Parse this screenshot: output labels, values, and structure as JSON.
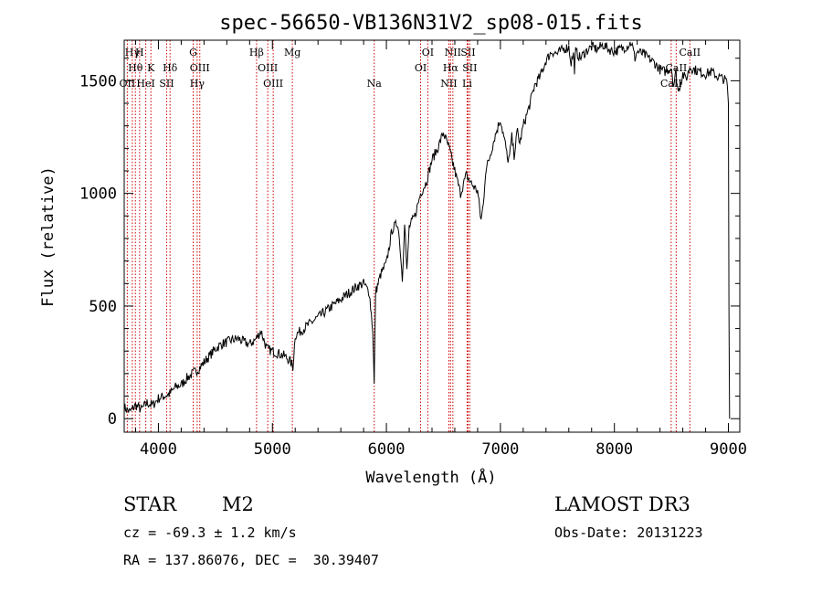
{
  "chart_data": {
    "type": "line",
    "title": "spec-56650-VB136N31V2_sp08-015.fits",
    "xlabel": "Wavelength (Å)",
    "ylabel": "Flux (relative)",
    "xlim": [
      3700,
      9100
    ],
    "ylim": [
      -60,
      1680
    ],
    "xticks": [
      4000,
      5000,
      6000,
      7000,
      8000,
      9000
    ],
    "yticks": [
      0,
      500,
      1000,
      1500
    ],
    "series": [
      {
        "name": "flux",
        "x": [
          3700,
          3750,
          3800,
          3850,
          3900,
          3950,
          4000,
          4050,
          4100,
          4150,
          4200,
          4250,
          4300,
          4350,
          4400,
          4450,
          4500,
          4550,
          4600,
          4650,
          4700,
          4750,
          4800,
          4850,
          4900,
          4950,
          5000,
          5050,
          5100,
          5150,
          5180,
          5200,
          5250,
          5300,
          5350,
          5400,
          5450,
          5500,
          5550,
          5600,
          5650,
          5700,
          5750,
          5800,
          5850,
          5880,
          5893,
          5905,
          5950,
          6000,
          6050,
          6100,
          6120,
          6140,
          6160,
          6180,
          6200,
          6250,
          6300,
          6350,
          6400,
          6450,
          6500,
          6550,
          6600,
          6650,
          6700,
          6750,
          6800,
          6830,
          6850,
          6870,
          6900,
          6950,
          7000,
          7030,
          7050,
          7060,
          7080,
          7100,
          7120,
          7150,
          7170,
          7200,
          7250,
          7300,
          7350,
          7400,
          7450,
          7500,
          7550,
          7600,
          7620,
          7640,
          7650,
          7660,
          7700,
          7750,
          7800,
          7850,
          7900,
          7950,
          8000,
          8050,
          8100,
          8150,
          8180,
          8200,
          8250,
          8300,
          8350,
          8400,
          8450,
          8500,
          8520,
          8540,
          8560,
          8600,
          8620,
          8640,
          8660,
          8700,
          8750,
          8800,
          8850,
          8900,
          8950,
          8980,
          8990,
          9000,
          9005,
          9010
        ],
        "values": [
          50,
          30,
          60,
          40,
          70,
          60,
          90,
          100,
          110,
          140,
          150,
          180,
          200,
          220,
          250,
          280,
          310,
          330,
          340,
          350,
          355,
          340,
          330,
          350,
          390,
          310,
          300,
          290,
          280,
          260,
          230,
          370,
          390,
          410,
          430,
          450,
          470,
          490,
          510,
          530,
          550,
          570,
          590,
          600,
          560,
          400,
          150,
          560,
          640,
          690,
          840,
          870,
          760,
          620,
          880,
          650,
          850,
          900,
          1000,
          1050,
          1150,
          1200,
          1270,
          1200,
          1100,
          1000,
          1080,
          1040,
          1010,
          880,
          950,
          1100,
          1150,
          1250,
          1330,
          1250,
          1200,
          1150,
          1160,
          1250,
          1170,
          1280,
          1220,
          1300,
          1380,
          1480,
          1520,
          1590,
          1630,
          1620,
          1640,
          1650,
          1580,
          1620,
          1550,
          1630,
          1600,
          1630,
          1650,
          1640,
          1660,
          1640,
          1630,
          1640,
          1650,
          1670,
          1600,
          1630,
          1620,
          1600,
          1580,
          1550,
          1540,
          1560,
          1480,
          1540,
          1450,
          1530,
          1510,
          1520,
          1560,
          1550,
          1540,
          1530,
          1540,
          1520,
          1510,
          1500,
          1480,
          1400,
          500,
          0
        ]
      }
    ],
    "line_markers": [
      {
        "label": "Hγ",
        "x": 3771,
        "row": 0
      },
      {
        "label": "H",
        "x": 3835,
        "row": 0
      },
      {
        "label": "G",
        "x": 4305,
        "row": 0
      },
      {
        "label": "Hβ",
        "x": 4861,
        "row": 0
      },
      {
        "label": "Mg",
        "x": 5175,
        "row": 0
      },
      {
        "label": "OI",
        "x": 6363,
        "row": 0
      },
      {
        "label": "NII",
        "x": 6583,
        "row": 0
      },
      {
        "label": "SII",
        "x": 6716,
        "row": 0
      },
      {
        "label": "CaII",
        "x": 8662,
        "row": 0
      },
      {
        "label": "Hθ",
        "x": 3798,
        "row": 1
      },
      {
        "label": "K",
        "x": 3934,
        "row": 1
      },
      {
        "label": "Hδ",
        "x": 4102,
        "row": 1
      },
      {
        "label": "OIII",
        "x": 4363,
        "row": 1
      },
      {
        "label": "OIII",
        "x": 4959,
        "row": 1
      },
      {
        "label": "OI",
        "x": 6300,
        "row": 1
      },
      {
        "label": "Hα",
        "x": 6563,
        "row": 1
      },
      {
        "label": "SII",
        "x": 6731,
        "row": 1
      },
      {
        "label": "CaII",
        "x": 8542,
        "row": 1
      },
      {
        "label": "OII",
        "x": 3727,
        "row": 2
      },
      {
        "label": "HeI",
        "x": 3889,
        "row": 2
      },
      {
        "label": "SII",
        "x": 4072,
        "row": 2
      },
      {
        "label": "Hγ",
        "x": 4340,
        "row": 2
      },
      {
        "label": "OIII",
        "x": 5007,
        "row": 2
      },
      {
        "label": "Na",
        "x": 5893,
        "row": 2
      },
      {
        "label": "NII",
        "x": 6548,
        "row": 2
      },
      {
        "label": "Li",
        "x": 6708,
        "row": 2
      },
      {
        "label": "CaII",
        "x": 8498,
        "row": 2
      }
    ],
    "line_color": "#cc0000"
  },
  "info": {
    "object_class": "STAR",
    "subclass": "M2",
    "survey": "LAMOST DR3",
    "redshift_line": "cz = -69.3 ± 1.2 km/s",
    "obs_date_line": "Obs-Date: 20131223",
    "coords_line": "RA = 137.86076, DEC =  30.39407"
  }
}
